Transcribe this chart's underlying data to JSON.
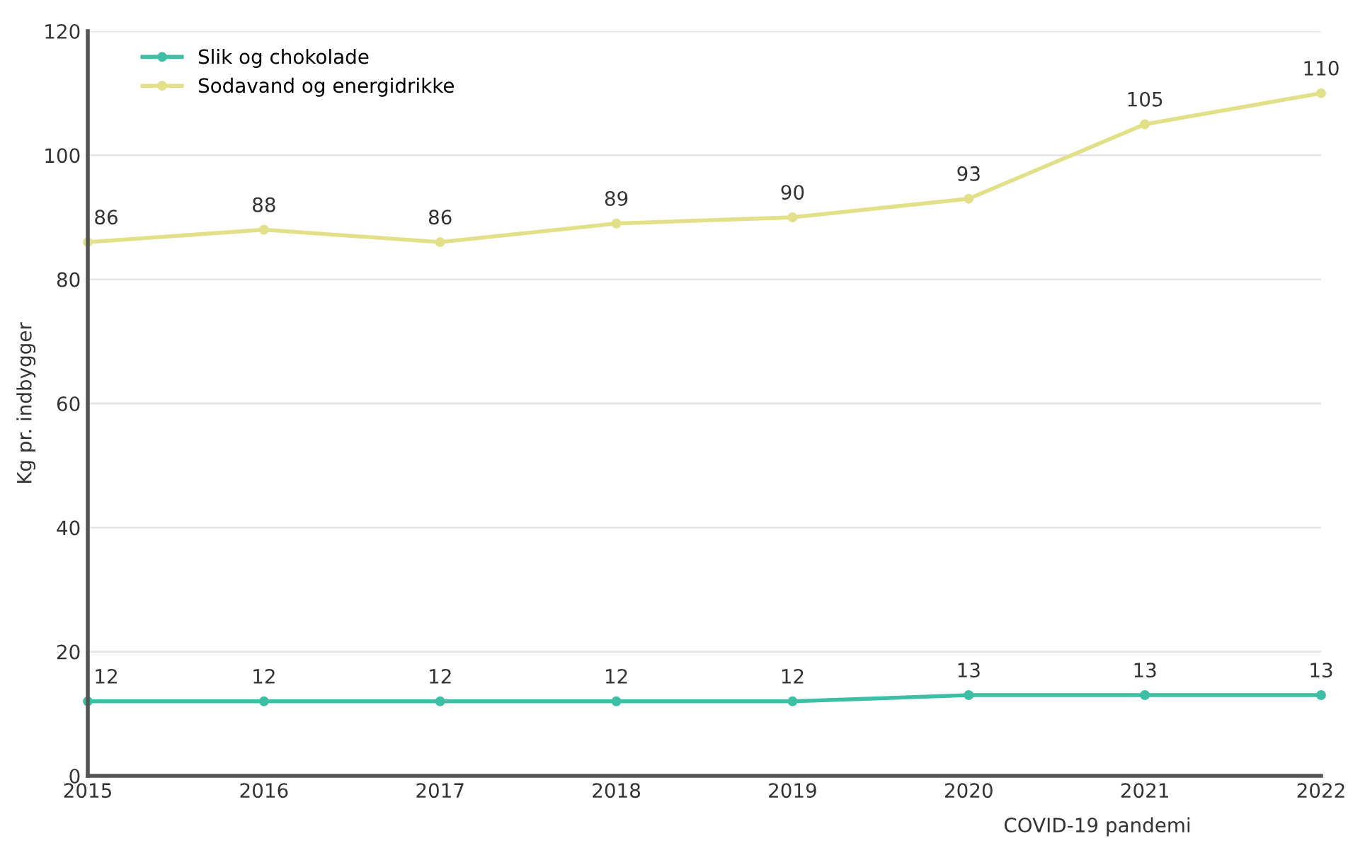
{
  "chart_data": {
    "type": "line",
    "ylabel": "Kg pr. indbygger",
    "categories": [
      "2015",
      "2016",
      "2017",
      "2018",
      "2019",
      "2020",
      "2021",
      "2022"
    ],
    "series": [
      {
        "name": "Slik og chokolade",
        "color": "#3dbfa5",
        "values": [
          12,
          12,
          12,
          12,
          12,
          13,
          13,
          13
        ]
      },
      {
        "name": "Sodavand og energidrikke",
        "color": "#e3e08a",
        "values": [
          86,
          88,
          86,
          89,
          90,
          93,
          105,
          110
        ]
      }
    ],
    "ylim": [
      0,
      120
    ],
    "yticks": [
      0,
      20,
      40,
      60,
      80,
      100,
      120
    ],
    "grid": "y",
    "legend": "top left",
    "marker": "circle",
    "data_labels": true,
    "annotations": [
      "COVID-19 pandemi"
    ]
  }
}
